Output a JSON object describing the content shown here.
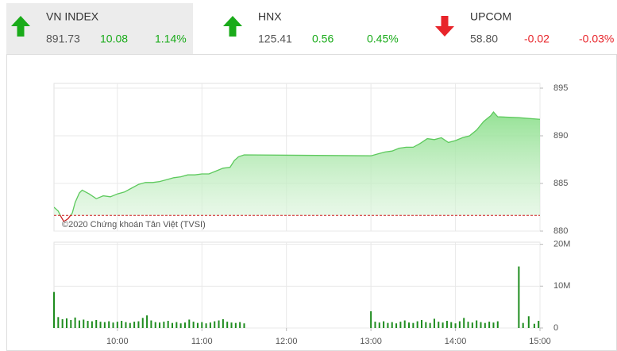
{
  "indices": [
    {
      "name": "VN INDEX",
      "value": "891.73",
      "change": "10.08",
      "change_percent": "1.14%",
      "direction": "up",
      "color": "#1aab1a"
    },
    {
      "name": "HNX",
      "value": "125.41",
      "change": "0.56",
      "change_percent": "0.45%",
      "direction": "up",
      "color": "#1aab1a"
    },
    {
      "name": "UPCOM",
      "value": "58.80",
      "change": "-0.02",
      "change_percent": "-0.03%",
      "direction": "down",
      "color": "#e8242a"
    }
  ],
  "chart_data": [
    {
      "type": "area",
      "annotation": "©2020 Chứng khoán Tân Việt (TVSI)",
      "x": [
        555,
        558,
        560,
        562,
        565,
        568,
        570,
        573,
        575,
        580,
        585,
        590,
        595,
        600,
        605,
        610,
        615,
        620,
        625,
        630,
        635,
        640,
        645,
        650,
        655,
        660,
        665,
        670,
        675,
        680,
        683,
        686,
        690,
        780,
        785,
        790,
        795,
        800,
        805,
        810,
        815,
        820,
        825,
        830,
        835,
        840,
        845,
        850,
        855,
        860,
        865,
        867,
        870,
        885,
        900
      ],
      "values": [
        882.5,
        882.1,
        881.5,
        881.0,
        881.3,
        881.9,
        883.0,
        884.0,
        884.3,
        883.9,
        883.4,
        883.7,
        883.6,
        883.9,
        884.1,
        884.5,
        884.9,
        885.1,
        885.1,
        885.2,
        885.4,
        885.6,
        885.7,
        885.9,
        885.9,
        886.0,
        886.0,
        886.3,
        886.6,
        886.7,
        887.4,
        887.8,
        888.0,
        887.9,
        888.1,
        888.3,
        888.4,
        888.7,
        888.8,
        888.8,
        889.2,
        889.7,
        889.6,
        889.8,
        889.3,
        889.5,
        889.8,
        890.0,
        890.6,
        891.5,
        892.1,
        892.5,
        892.0,
        891.9,
        891.73
      ],
      "xlim": [
        555,
        900
      ],
      "ylim": [
        880,
        895.5
      ],
      "yticks": [
        880,
        885,
        890,
        895
      ],
      "reference": 881.65,
      "reference_color": "#cc1f1f",
      "color": "#5cc95c",
      "grid": true
    },
    {
      "type": "bar",
      "x": [
        555,
        558,
        561,
        564,
        567,
        570,
        573,
        576,
        579,
        582,
        585,
        588,
        591,
        594,
        597,
        600,
        603,
        606,
        609,
        612,
        615,
        618,
        621,
        624,
        627,
        630,
        633,
        636,
        639,
        642,
        645,
        648,
        651,
        654,
        657,
        660,
        663,
        666,
        669,
        672,
        675,
        678,
        681,
        684,
        687,
        690,
        780,
        783,
        786,
        789,
        792,
        795,
        798,
        801,
        804,
        807,
        810,
        813,
        816,
        819,
        822,
        825,
        828,
        831,
        834,
        837,
        840,
        843,
        846,
        849,
        852,
        855,
        858,
        861,
        864,
        867,
        870,
        885,
        888,
        892,
        896,
        899
      ],
      "values": [
        8600000,
        2600000,
        2100000,
        2300000,
        1900000,
        2500000,
        1800000,
        2000000,
        1700000,
        1600000,
        1900000,
        1500000,
        1400000,
        1600000,
        1300000,
        1500000,
        1700000,
        1400000,
        1200000,
        1500000,
        1600000,
        2400000,
        3000000,
        1800000,
        1400000,
        1300000,
        1500000,
        1700000,
        1200000,
        1400000,
        1100000,
        1300000,
        2000000,
        1500000,
        1200000,
        1400000,
        1100000,
        1300000,
        1600000,
        1800000,
        2100000,
        1500000,
        1300000,
        1200000,
        1400000,
        1100000,
        4000000,
        1500000,
        1300000,
        1600000,
        1200000,
        1400000,
        1100000,
        1500000,
        1800000,
        1300000,
        1200000,
        1600000,
        1900000,
        1400000,
        1200000,
        2200000,
        1500000,
        1300000,
        1700000,
        1400000,
        1100000,
        1600000,
        2400000,
        1500000,
        1300000,
        1800000,
        1400000,
        1200000,
        1500000,
        1300000,
        1600000,
        14700000,
        1200000,
        2800000,
        1000000,
        1700000
      ],
      "xlim": [
        555,
        900
      ],
      "ylim": [
        0,
        20500000
      ],
      "yticks": [
        0,
        {
          "value": 10000000,
          "label": "10M"
        },
        {
          "value": 20000000,
          "label": "20M"
        }
      ],
      "xticks": [
        {
          "value": 600,
          "label": "10:00"
        },
        {
          "value": 660,
          "label": "11:00"
        },
        {
          "value": 720,
          "label": "12:00"
        },
        {
          "value": 780,
          "label": "13:00"
        },
        {
          "value": 840,
          "label": "14:00"
        },
        {
          "value": 900,
          "label": "15:00"
        }
      ],
      "color": "#1e8c1e",
      "grid": true
    }
  ]
}
